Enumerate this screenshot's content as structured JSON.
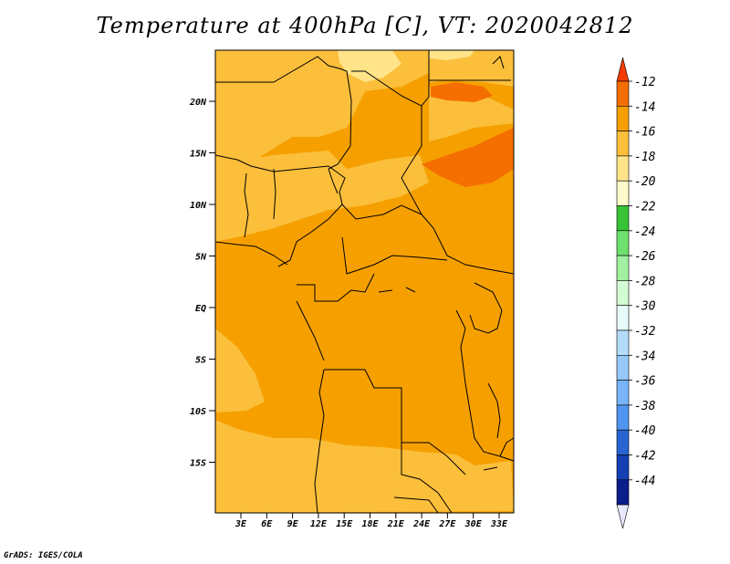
{
  "title": "Temperature at 400hPa [C], VT: 2020042812",
  "credit": "GrADS: IGES/COLA",
  "map": {
    "lat_labels": [
      "20N",
      "15N",
      "10N",
      "5N",
      "EQ",
      "5S",
      "10S",
      "15S"
    ],
    "lon_labels": [
      "3E",
      "6E",
      "9E",
      "12E",
      "15E",
      "18E",
      "21E",
      "24E",
      "27E",
      "30E",
      "33E"
    ],
    "background_color": "#f5a000",
    "field_colors": {
      "c_14_12": "#f56e00",
      "c_16_14": "#f5a000",
      "c_18_16": "#fbbf3b",
      "c_20_18": "#ffe48a"
    }
  },
  "colorbar": {
    "labels": [
      "-12",
      "-14",
      "-16",
      "-18",
      "-20",
      "-22",
      "-24",
      "-26",
      "-28",
      "-30",
      "-32",
      "-34",
      "-36",
      "-38",
      "-40",
      "-42",
      "-44"
    ],
    "top_color": "#f53c00",
    "colors": [
      "#f56e00",
      "#f5a000",
      "#fbbf3b",
      "#ffe48a",
      "#fffacc",
      "#36c436",
      "#6ee06e",
      "#a0f0a0",
      "#d4fcd4",
      "#e6fafa",
      "#b4dcfa",
      "#96c8fa",
      "#78b4fa",
      "#5096f0",
      "#2864d2",
      "#1440b4",
      "#0a1e8c"
    ],
    "bottom_color": "#e8e8ff"
  }
}
